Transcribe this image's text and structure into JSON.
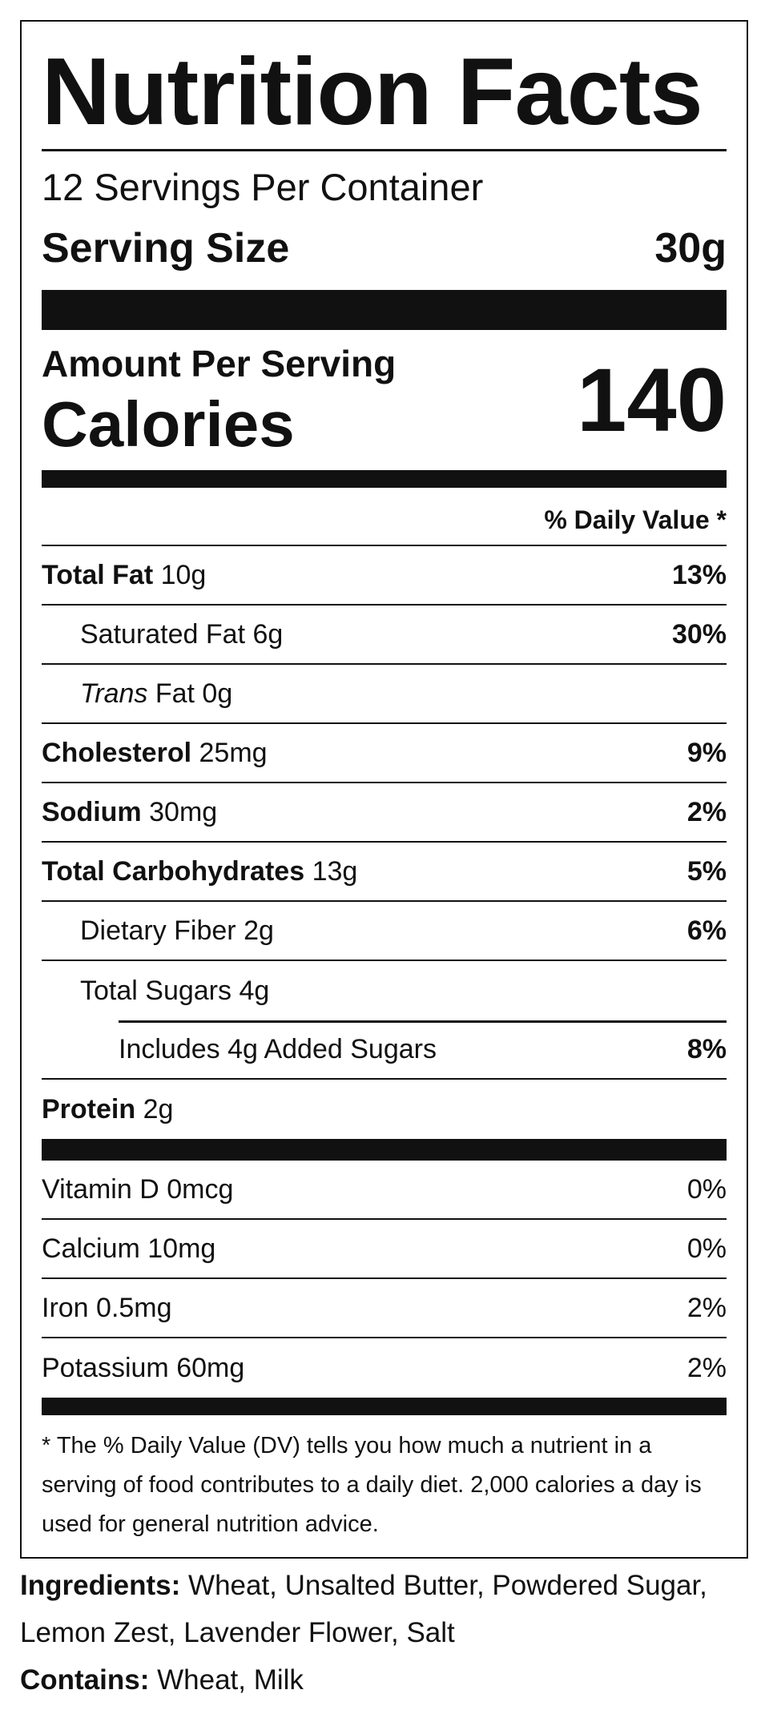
{
  "header": {
    "title": "Nutrition Facts",
    "servings": "12 Servings Per Container",
    "serving_size_label": "Serving Size",
    "serving_size": "30g"
  },
  "calories": {
    "amount_label": "Amount Per Serving",
    "label": "Calories",
    "value": "140"
  },
  "daily_value_header": "% Daily Value *",
  "nutrients": [
    {
      "name": "Total Fat",
      "amount": "10g",
      "dv": "13%"
    },
    {
      "name": "Saturated Fat",
      "amount": "6g",
      "dv": "30%"
    },
    {
      "name": "Trans",
      "name_rest": "Fat",
      "amount": "0g"
    },
    {
      "name": "Cholesterol",
      "amount": "25mg",
      "dv": "9%"
    },
    {
      "name": "Sodium",
      "amount": "30mg",
      "dv": "2%"
    },
    {
      "name": "Total Carbohydrates",
      "amount": "13g",
      "dv": "5%"
    },
    {
      "name": "Dietary Fiber",
      "amount": "2g",
      "dv": "6%"
    },
    {
      "name": "Total Sugars",
      "amount": "4g"
    },
    {
      "name": "Includes 4g Added Sugars",
      "dv": "8%"
    },
    {
      "name": "Protein",
      "amount": "2g"
    }
  ],
  "vitamins": [
    {
      "name": "Vitamin D",
      "amount": "0mcg",
      "dv": "0%"
    },
    {
      "name": "Calcium",
      "amount": "10mg",
      "dv": "0%"
    },
    {
      "name": "Iron",
      "amount": "0.5mg",
      "dv": "2%"
    },
    {
      "name": "Potassium",
      "amount": "60mg",
      "dv": "2%"
    }
  ],
  "footnote": "* The % Daily Value (DV) tells you how much a nutrient in a serving of food contributes to a daily diet. 2,000 calories a day is used for general nutrition advice.",
  "ingredients": {
    "label": "Ingredients:",
    "text": "Wheat, Unsalted Butter, Powdered Sugar, Lemon Zest, Lavender Flower, Salt"
  },
  "contains": {
    "label": "Contains:",
    "text": "Wheat, Milk"
  }
}
